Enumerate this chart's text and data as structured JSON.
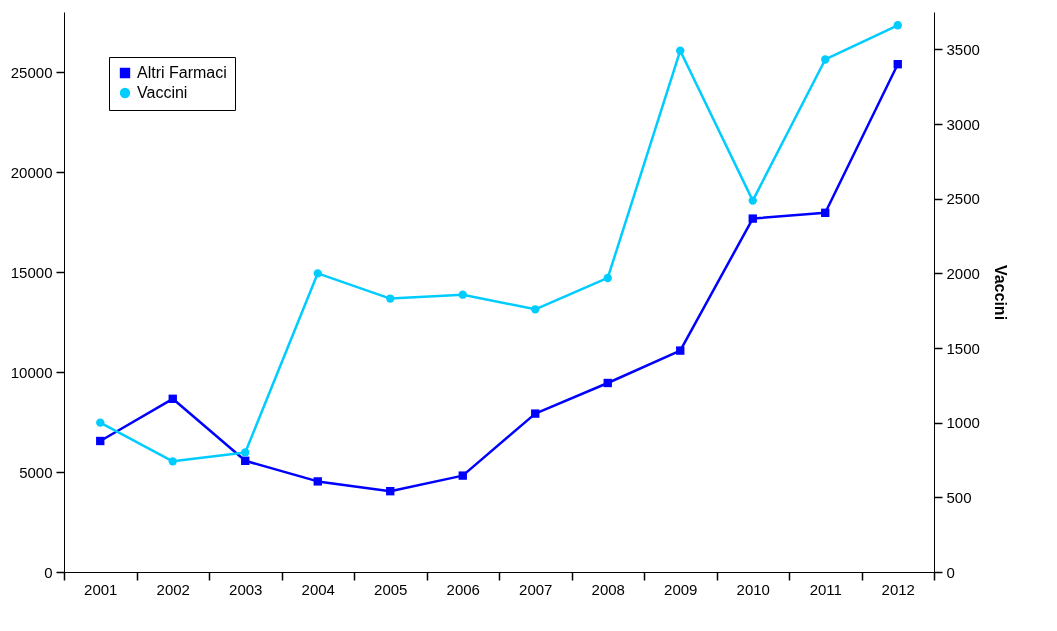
{
  "chart_data": {
    "type": "line",
    "y2label": "Vaccini",
    "categories": [
      "2001",
      "2002",
      "2003",
      "2004",
      "2005",
      "2006",
      "2007",
      "2008",
      "2009",
      "2010",
      "2011",
      "2012"
    ],
    "series": [
      {
        "name": "Altri Farmaci",
        "color": "#0000ff",
        "marker": "square",
        "values": [
          6550,
          8660,
          5560,
          4530,
          4040,
          4820,
          7920,
          9450,
          11070,
          17670,
          17960,
          25390
        ]
      },
      {
        "name": "Vaccini",
        "color": "#00ccff",
        "marker": "circle",
        "axis": "y2",
        "values": [
          1000,
          741,
          800,
          2000,
          1831,
          1857,
          1759,
          1969,
          3491,
          2487,
          3432,
          3661
        ]
      }
    ],
    "ylim": [
      0,
      28000
    ],
    "yticks": [
      0,
      5000,
      10000,
      15000,
      20000,
      25000
    ],
    "y2lim": [
      0,
      3750
    ],
    "y2ticks": [
      0,
      500,
      1000,
      1500,
      2000,
      2500,
      3000,
      3500
    ],
    "grid": false,
    "legend": "top left",
    "line_style": "solid"
  }
}
